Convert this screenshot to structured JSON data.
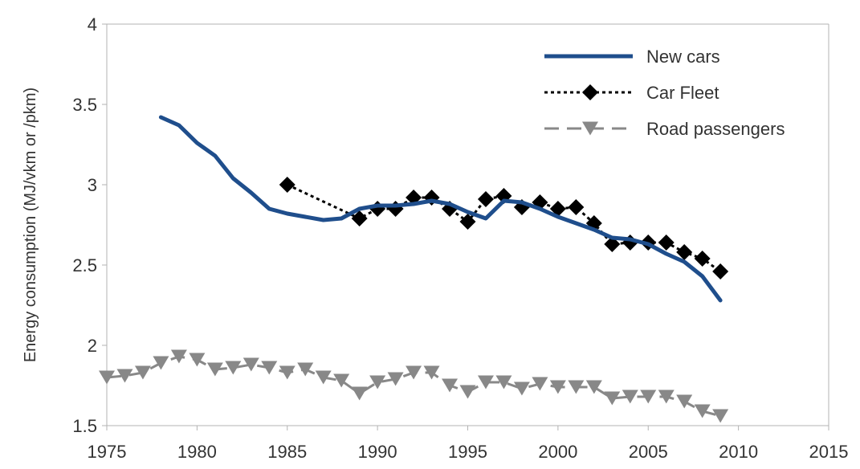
{
  "chart_data": {
    "type": "line",
    "title": "",
    "xlabel": "",
    "ylabel": "Energy consumption (MJ/vkm or /pkm)",
    "xlim": [
      1975,
      2015
    ],
    "ylim": [
      1.5,
      4
    ],
    "x_ticks": [
      "1975",
      "1980",
      "1985",
      "1990",
      "1995",
      "2000",
      "2005",
      "2010",
      "2015"
    ],
    "y_ticks": [
      "1.5",
      "2",
      "2.5",
      "3",
      "3.5",
      "4"
    ],
    "grid": false,
    "legend_position": "top-right",
    "series": [
      {
        "name": "New cars",
        "color": "#1f4e8c",
        "style": "solid",
        "marker": "none",
        "x": [
          1978,
          1979,
          1980,
          1981,
          1982,
          1983,
          1984,
          1985,
          1986,
          1987,
          1988,
          1989,
          1990,
          1991,
          1992,
          1993,
          1994,
          1995,
          1996,
          1997,
          1998,
          1999,
          2000,
          2001,
          2002,
          2003,
          2004,
          2005,
          2006,
          2007,
          2008,
          2009
        ],
        "y": [
          3.42,
          3.37,
          3.26,
          3.18,
          3.04,
          2.95,
          2.85,
          2.82,
          2.8,
          2.78,
          2.79,
          2.85,
          2.87,
          2.87,
          2.88,
          2.9,
          2.88,
          2.83,
          2.79,
          2.9,
          2.89,
          2.85,
          2.8,
          2.76,
          2.72,
          2.67,
          2.66,
          2.63,
          2.57,
          2.52,
          2.43,
          2.28
        ]
      },
      {
        "name": "Car Fleet",
        "color": "#000000",
        "style": "dotted",
        "marker": "diamond",
        "x": [
          1985,
          1989,
          1990,
          1991,
          1992,
          1993,
          1994,
          1995,
          1996,
          1997,
          1998,
          1999,
          2000,
          2001,
          2002,
          2003,
          2004,
          2005,
          2006,
          2007,
          2008,
          2009
        ],
        "y": [
          3.0,
          2.79,
          2.85,
          2.85,
          2.92,
          2.92,
          2.85,
          2.77,
          2.91,
          2.93,
          2.86,
          2.89,
          2.85,
          2.86,
          2.76,
          2.63,
          2.64,
          2.64,
          2.64,
          2.58,
          2.54,
          2.46
        ]
      },
      {
        "name": "Road passengers",
        "color": "#888888",
        "style": "dashed",
        "marker": "triangle-down",
        "x": [
          1975,
          1976,
          1977,
          1978,
          1979,
          1980,
          1981,
          1982,
          1983,
          1984,
          1985,
          1986,
          1987,
          1988,
          1989,
          1990,
          1991,
          1992,
          1993,
          1994,
          1995,
          1996,
          1997,
          1998,
          1999,
          2000,
          2001,
          2002,
          2003,
          2004,
          2005,
          2006,
          2007,
          2008,
          2009
        ],
        "y": [
          1.8,
          1.81,
          1.83,
          1.89,
          1.93,
          1.91,
          1.85,
          1.86,
          1.88,
          1.86,
          1.83,
          1.85,
          1.8,
          1.78,
          1.7,
          1.77,
          1.79,
          1.83,
          1.83,
          1.75,
          1.71,
          1.77,
          1.77,
          1.73,
          1.76,
          1.74,
          1.74,
          1.74,
          1.67,
          1.68,
          1.68,
          1.68,
          1.65,
          1.59,
          1.56
        ]
      }
    ]
  }
}
